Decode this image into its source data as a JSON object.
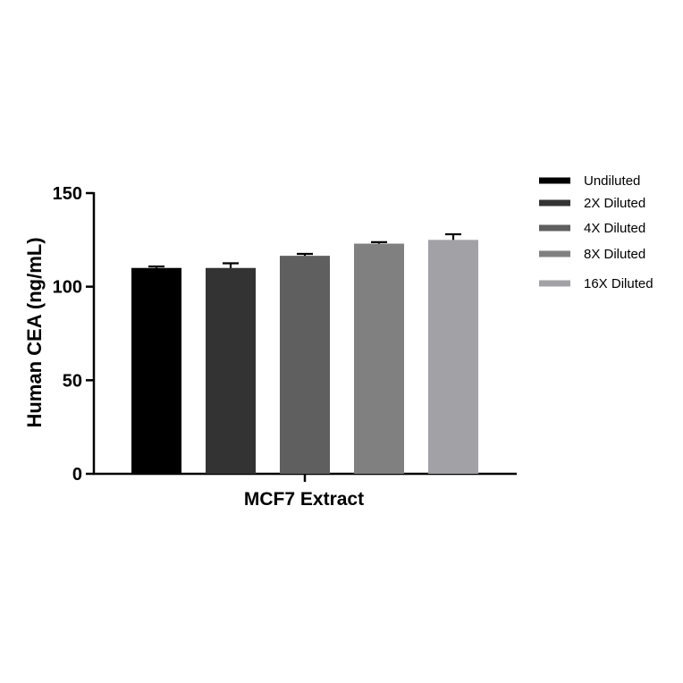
{
  "chart_data": {
    "type": "bar",
    "category_label": "MCF7 Extract",
    "ylabel": "Human CEA (ng/mL)",
    "ylim": [
      0,
      150
    ],
    "yticks": [
      0,
      50,
      100,
      150
    ],
    "grid": false,
    "legend_position": "right",
    "series": [
      {
        "name": "Undiluted",
        "value": 110,
        "error": 0.8,
        "color": "#000000"
      },
      {
        "name": "2X Diluted",
        "value": 110,
        "error": 2.5,
        "color": "#333333"
      },
      {
        "name": "4X Diluted",
        "value": 116.5,
        "error": 1.0,
        "color": "#5f5f5f"
      },
      {
        "name": "8X Diluted",
        "value": 123,
        "error": 0.8,
        "color": "#808080"
      },
      {
        "name": "16X Diluted",
        "value": 125,
        "error": 3.0,
        "color": "#a2a2a6"
      }
    ]
  }
}
